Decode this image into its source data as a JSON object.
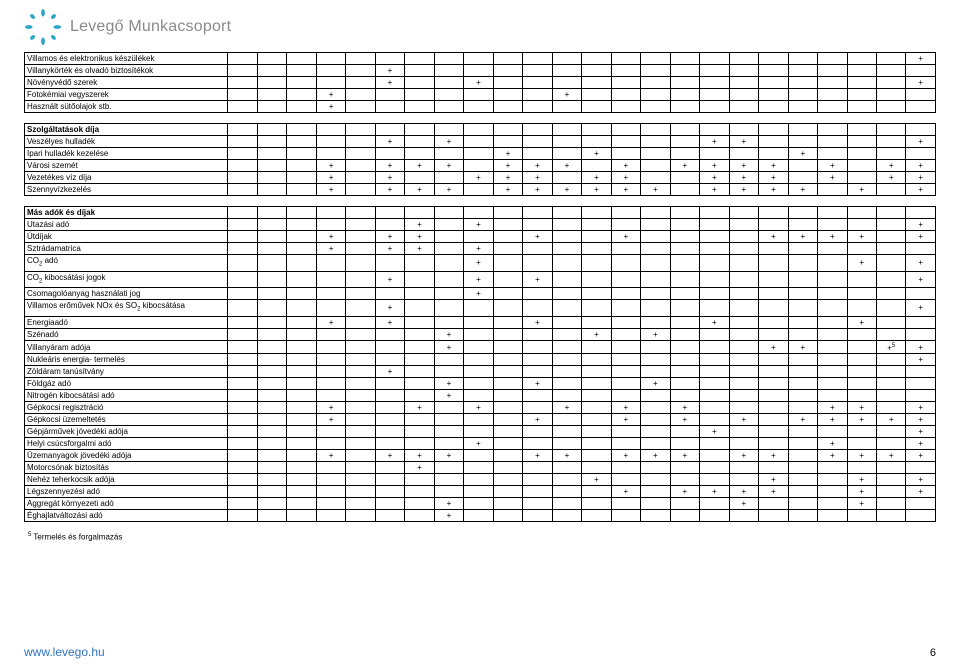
{
  "brand": "Levegő Munkacsoport",
  "brand_color": "#8a8a8a",
  "star_color": "#2aa7c7",
  "numCols": 24,
  "sections": [
    {
      "header": null,
      "rows": [
        {
          "label": "Villamos és elektronikus készülékek",
          "marks": [
            24
          ]
        },
        {
          "label": "Villanykörték és olvadó biztosítékok",
          "marks": [
            6
          ]
        },
        {
          "label": "Növényvédő szerek",
          "marks": [
            6,
            9,
            24
          ]
        },
        {
          "label": "Fotokémiai vegyszerek",
          "marks": [
            4,
            12
          ]
        },
        {
          "label": "Használt sütőolajok stb.",
          "marks": [
            4
          ]
        }
      ]
    },
    {
      "header": "Szolgáltatások díja",
      "rows": [
        {
          "label": "Veszélyes hulladék",
          "marks": [
            6,
            8,
            17,
            18,
            24
          ]
        },
        {
          "label": "Ipari hulladék kezelése",
          "marks": [
            10,
            13,
            20
          ]
        },
        {
          "label": "Városi szemét",
          "marks": [
            4,
            6,
            7,
            8,
            10,
            11,
            12,
            14,
            16,
            17,
            18,
            19,
            21,
            23,
            24
          ]
        },
        {
          "label": "Vezetékes víz díja",
          "marks": [
            4,
            6,
            9,
            10,
            11,
            13,
            14,
            17,
            18,
            19,
            21,
            23,
            24
          ]
        },
        {
          "label": "Szennyvízkezelés",
          "marks": [
            4,
            6,
            7,
            8,
            10,
            11,
            12,
            13,
            14,
            15,
            17,
            18,
            19,
            20,
            22,
            24
          ]
        }
      ]
    },
    {
      "header": "Más adók és díjak",
      "rows": [
        {
          "label": "Utazási adó",
          "marks": [
            7,
            9,
            24
          ]
        },
        {
          "label": "Útdíjak",
          "marks": [
            4,
            6,
            7,
            11,
            14,
            19,
            20,
            21,
            22,
            24
          ]
        },
        {
          "label": "Sztrádamatrica",
          "marks": [
            4,
            6,
            7,
            9
          ]
        },
        {
          "label": "CO<sub>2</sub> adó",
          "marks": [
            9,
            22,
            24
          ]
        },
        {
          "label": "CO<sub>2</sub> kibocsátási jogok",
          "marks": [
            6,
            9,
            11,
            24
          ]
        },
        {
          "label": "Csomagolóanyag használati jog",
          "marks": [
            9
          ]
        },
        {
          "label": "Villamos erőművek NOx és SO<sub>2</sub> kibocsátása",
          "marks": [
            6,
            24
          ]
        },
        {
          "label": "Energiaadó",
          "marks": [
            4,
            6,
            11,
            17,
            22
          ]
        },
        {
          "label": "Szénadó",
          "marks": [
            8,
            13,
            15
          ]
        },
        {
          "label": "Villanyáram adója",
          "marks": [
            8,
            19,
            20,
            23
          ],
          "sup5": 23,
          "extra24": true
        },
        {
          "label": "Nukleáris energia- termelés",
          "marks": [
            24
          ]
        },
        {
          "label": "Zöldáram tanúsítvány",
          "marks": [
            6
          ]
        },
        {
          "label": "Földgáz adó",
          "marks": [
            8,
            11,
            15
          ]
        },
        {
          "label": "Nitrogén kibocsátási adó",
          "marks": [
            8
          ]
        },
        {
          "label": "Gépkocsi regisztráció",
          "marks": [
            4,
            7,
            9,
            12,
            14,
            16,
            21,
            22,
            24
          ]
        },
        {
          "label": "Gépkocsi üzemeltetés",
          "marks": [
            4,
            11,
            14,
            16,
            18,
            20,
            21,
            22,
            23,
            24
          ]
        },
        {
          "label": "Gépjárművek jövedéki adója",
          "marks": [
            17,
            24
          ]
        },
        {
          "label": "Helyi csúcsforgalmi adó",
          "marks": [
            9,
            21,
            24
          ]
        },
        {
          "label": "Üzemanyagok jövedéki adója",
          "marks": [
            4,
            6,
            7,
            8,
            11,
            12,
            14,
            15,
            16,
            18,
            19,
            21,
            22,
            23,
            24
          ]
        },
        {
          "label": "Motorcsónak biztosítás",
          "marks": [
            7
          ]
        },
        {
          "label": "Nehéz teherkocsik adója",
          "marks": [
            13,
            19,
            22,
            24
          ]
        },
        {
          "label": "Légszennyezési adó",
          "marks": [
            14,
            16,
            17,
            18,
            19,
            22,
            24
          ]
        },
        {
          "label": "Aggregát környezeti adó",
          "marks": [
            8,
            18,
            22
          ]
        },
        {
          "label": "Éghajlatváltozási adó",
          "marks": [
            8
          ]
        }
      ]
    }
  ],
  "footnote": "<sup>5</sup> Termelés és forgalmazás",
  "footer_link": "www.levego.hu",
  "footer_link_color": "#2f73c4",
  "footer_page": "6"
}
